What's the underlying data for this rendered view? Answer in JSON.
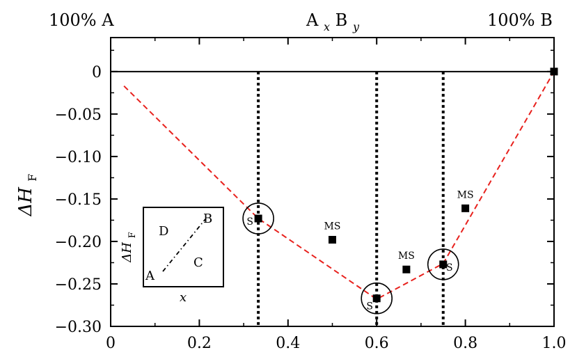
{
  "chart_data": {
    "type": "scatter",
    "header": {
      "left": "100% A",
      "center_main": "A",
      "center_sub_x": "x",
      "center_mid": "B",
      "center_sub_y": "y",
      "right": "100% B"
    },
    "ylabel": {
      "symbol": "ΔH",
      "subscript": "F"
    },
    "xlim": [
      0,
      1.0
    ],
    "ylim": [
      -0.3,
      0.04
    ],
    "x_ticks": [
      0,
      0.2,
      0.4,
      0.6,
      0.8,
      1.0
    ],
    "x_tick_labels": [
      "0",
      "0.2",
      "0.4",
      "0.6",
      "0.8",
      "1.0"
    ],
    "y_ticks": [
      0,
      -0.05,
      -0.1,
      -0.15,
      -0.2,
      -0.25,
      -0.3
    ],
    "y_tick_labels": [
      "0",
      "−0.05",
      "−0.10",
      "−0.15",
      "−0.20",
      "−0.25",
      "−0.30"
    ],
    "zero_line": 0,
    "vertical_lines_x": [
      0.333,
      0.6,
      0.75
    ],
    "hull_line": {
      "style": "dashed",
      "color": "#e8211d",
      "points": [
        {
          "x": 0.03,
          "y": -0.017
        },
        {
          "x": 0.333,
          "y": -0.173
        },
        {
          "x": 0.6,
          "y": -0.268
        },
        {
          "x": 0.75,
          "y": -0.226
        },
        {
          "x": 1.0,
          "y": 0.0
        }
      ]
    },
    "points": [
      {
        "x": 0.333,
        "y": -0.173,
        "label": "S",
        "circled": true
      },
      {
        "x": 0.5,
        "y": -0.198,
        "label": "MS",
        "circled": false
      },
      {
        "x": 0.6,
        "y": -0.267,
        "label": "S",
        "circled": true
      },
      {
        "x": 0.667,
        "y": -0.233,
        "label": "MS",
        "circled": false
      },
      {
        "x": 0.75,
        "y": -0.227,
        "label": "S",
        "circled": true
      },
      {
        "x": 0.8,
        "y": -0.161,
        "label": "MS",
        "circled": false
      },
      {
        "x": 1.0,
        "y": 0.0,
        "label": "",
        "circled": false
      }
    ],
    "inset": {
      "ylabel_symbol": "ΔH",
      "ylabel_subscript": "F",
      "xlabel": "x",
      "labels": {
        "A": "A",
        "B": "B",
        "C": "C",
        "D": "D"
      }
    }
  }
}
